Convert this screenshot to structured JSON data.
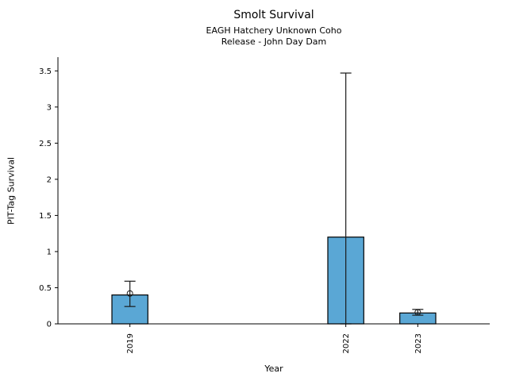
{
  "chart_data": {
    "type": "bar",
    "title": "Smolt Survival",
    "subtitle_line1": "EAGH Hatchery Unknown Coho",
    "subtitle_line2": "Release - John Day Dam",
    "xlabel": "Year",
    "ylabel": "PIT-Tag Survival",
    "categories": [
      "2019",
      "2022",
      "2023"
    ],
    "years": [
      2019,
      2022,
      2023
    ],
    "values": [
      0.4,
      1.2,
      0.15
    ],
    "error_low": [
      0.24,
      0.0,
      0.12
    ],
    "error_high": [
      0.59,
      3.47,
      0.2
    ],
    "point_estimates": [
      0.42,
      null,
      0.16
    ],
    "yticks": [
      0,
      0.5,
      1,
      1.5,
      2,
      2.5,
      3,
      3.5
    ],
    "ylim": [
      0,
      3.69
    ],
    "xlim": [
      2018,
      2024
    ],
    "bar_width_years": 0.5,
    "bar_color": "#5AA7D5",
    "bar_edge_color": "#000000",
    "error_color": "#1a1a1a",
    "marker": "open-circle",
    "grid": false,
    "legend": null,
    "background_color": "#ffffff"
  }
}
